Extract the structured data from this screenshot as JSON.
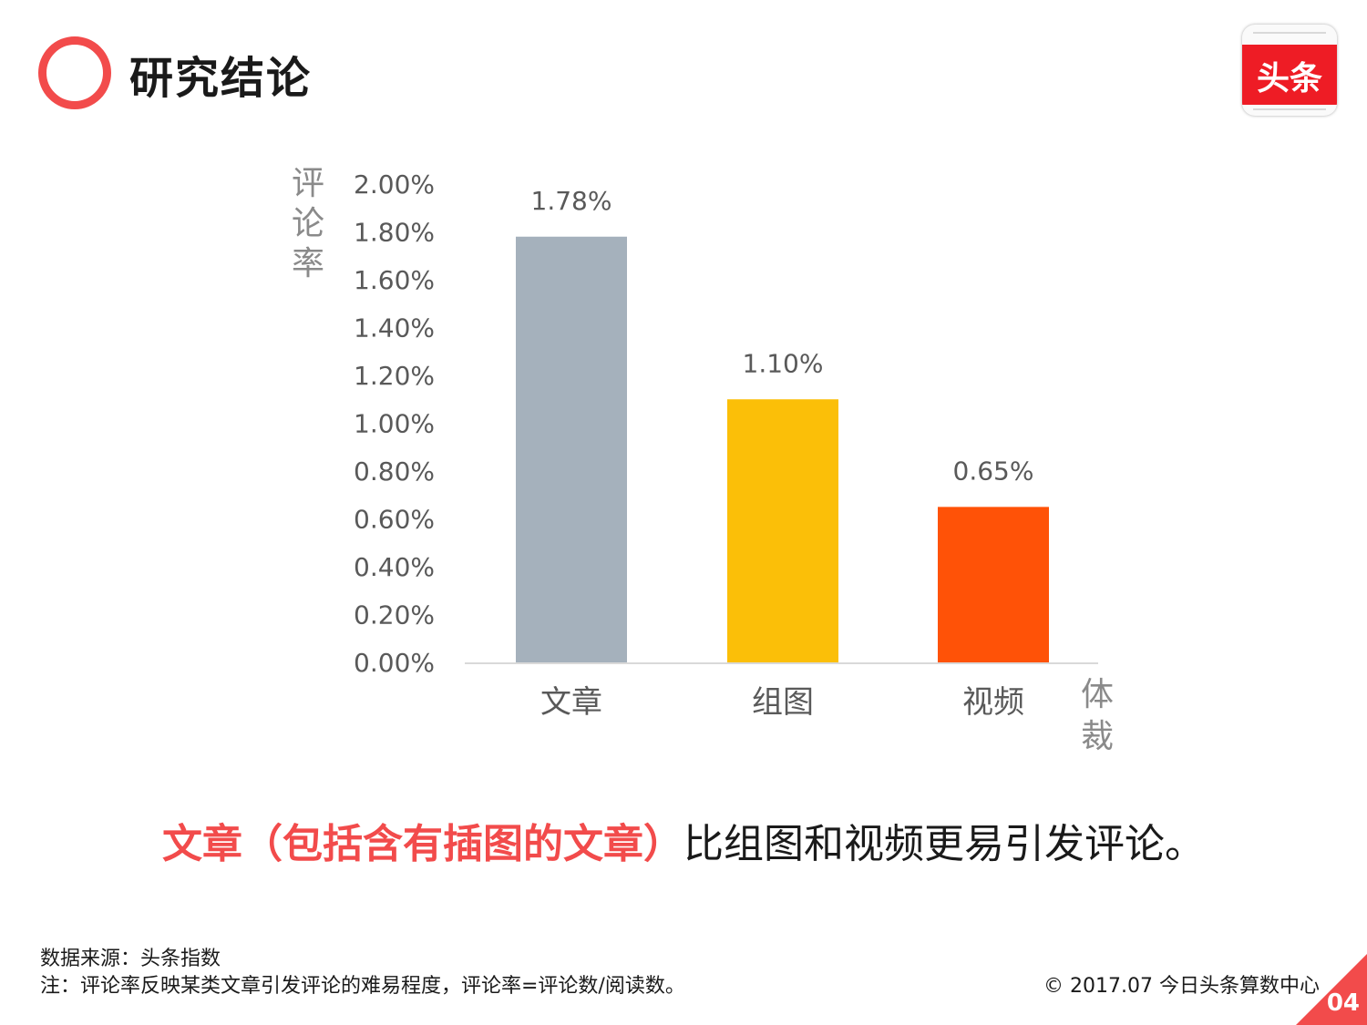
{
  "header": {
    "title": "研究结论"
  },
  "logo": {
    "text": "头条"
  },
  "chart_data": {
    "type": "bar",
    "ylabel": "评论率",
    "xlabel": "体裁",
    "categories": [
      "文章",
      "组图",
      "视频"
    ],
    "values": [
      1.78,
      1.1,
      0.65
    ],
    "value_labels": [
      "1.78%",
      "1.10%",
      "0.65%"
    ],
    "colors": [
      "#a5b1bc",
      "#fbbf08",
      "#ff5207"
    ],
    "ylim": [
      0,
      2.0
    ],
    "yticks": [
      "0.00%",
      "0.20%",
      "0.40%",
      "0.60%",
      "0.80%",
      "1.00%",
      "1.20%",
      "1.40%",
      "1.60%",
      "1.80%",
      "2.00%"
    ],
    "grid": false,
    "legend": "none"
  },
  "conclusion": {
    "highlight": "文章（包括含有插图的文章）",
    "rest": "比组图和视频更易引发评论。"
  },
  "footer": {
    "source": "数据来源：头条指数",
    "note": "注：评论率反映某类文章引发评论的难易程度，评论率=评论数/阅读数。",
    "copyright": "© 2017.07 今日头条算数中心",
    "page_number": "04"
  },
  "colors": {
    "accent": "#f24b4b",
    "axis_text": "#595959"
  }
}
